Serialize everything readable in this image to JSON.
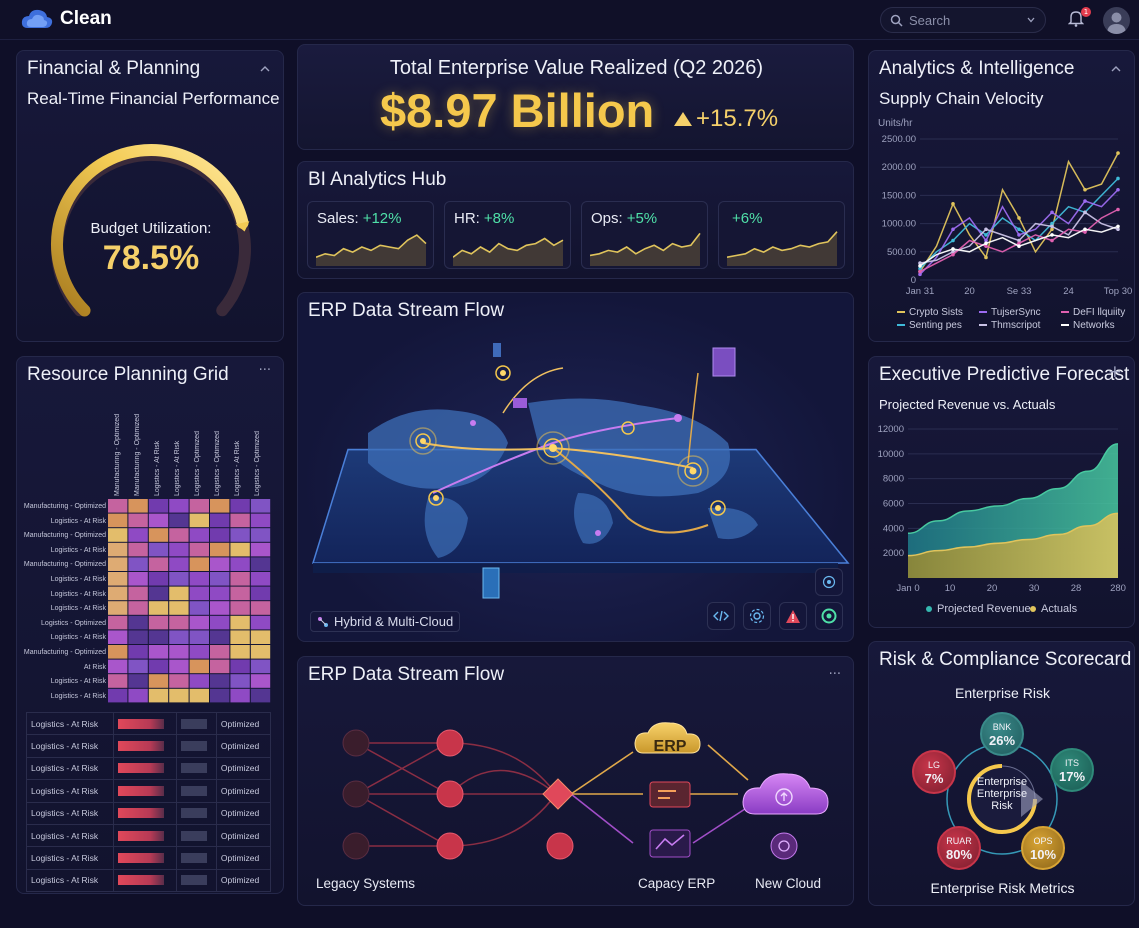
{
  "app": {
    "name": "Clean"
  },
  "search": {
    "placeholder": "Search"
  },
  "notifications": {
    "count": "1"
  },
  "financial": {
    "title": "Financial & Planning",
    "subtitle": "Real-Time Financial Performance",
    "gauge_label": "Budget Utilization:",
    "gauge_value": "78.5%",
    "gauge_fraction": 0.785
  },
  "resource": {
    "title": "Resource Planning Grid",
    "col_labels": [
      "Manufacturing - Optimized",
      "Manufacturing - Optimized",
      "Logistics - At Risk",
      "Logistics - At Risk",
      "Logistics - Optimized",
      "Logistics - Optimized",
      "Logistics - At Risk",
      "Logistics - Optimized"
    ],
    "row_labels": [
      "Manufacturing - Optimized",
      "Logistics - At Risk",
      "Manufacturing - Optimized",
      "Logistics - At Risk",
      "Manufacturing - Optimized",
      "Logistics - At Risk",
      "Logistics - At Risk",
      "Logistics - At Risk",
      "Logistics - Optimized",
      "Logistics - At Risk",
      "Manufacturing - Optimized",
      "At Risk",
      "Logistics - At Risk",
      "Logistics - At Risk"
    ],
    "table_rows": [
      {
        "name": "Logistics - At Risk",
        "status": "Optimized"
      },
      {
        "name": "Logistics - At Risk",
        "status": "Optimized"
      },
      {
        "name": "Logistics - At Risk",
        "status": "Optimized"
      },
      {
        "name": "Logistics - At Risk",
        "status": "Optimized"
      },
      {
        "name": "Logistics - At Risk",
        "status": "Optimized"
      },
      {
        "name": "Logistics - At Risk",
        "status": "Optimized"
      },
      {
        "name": "Logistics - At Risk",
        "status": "Optimized"
      },
      {
        "name": "Logistics - At Risk",
        "status": "Optimized"
      }
    ]
  },
  "hero": {
    "title": "Total Enterprise Value Realized (Q2 2026)",
    "value": "$8.97 Billion",
    "change": "+15.7%"
  },
  "bi": {
    "title": "BI Analytics Hub",
    "cards": [
      {
        "label": "Sales:",
        "value": "+12%"
      },
      {
        "label": "HR:",
        "value": "+8%"
      },
      {
        "label": "Ops:",
        "value": "+5%"
      },
      {
        "label": "",
        "value": "+6%"
      }
    ]
  },
  "erp_map": {
    "title": "ERP Data Stream Flow",
    "legend": "Hybrid & Multi-Cloud"
  },
  "erp_flow": {
    "title": "ERP Data Stream Flow",
    "erp_label": "ERP",
    "nodes": {
      "legacy": "Legacy Systems",
      "capacity": "Capacy ERP",
      "cloud": "New Cloud"
    }
  },
  "analytics": {
    "title": "Analytics & Intelligence",
    "chart_title": "Supply Chain Velocity",
    "chart_data": {
      "type": "line",
      "ylabel": "Units/hr",
      "y_ticks": [
        "0",
        "500.00",
        "1000.00",
        "1500.00",
        "2000.00",
        "2500.00"
      ],
      "x_ticks": [
        "Jan 31",
        "20",
        "Se 33",
        "24",
        "Top 30"
      ],
      "ylim": [
        0,
        2500
      ],
      "x": [
        0,
        1,
        2,
        3,
        4,
        5,
        6,
        7,
        8,
        9,
        10,
        11,
        12
      ],
      "series": [
        {
          "name": "Crypto Sists",
          "color": "#e0c45c",
          "values": [
            150,
            600,
            1350,
            800,
            400,
            1600,
            1100,
            500,
            900,
            2100,
            1600,
            1700,
            2250
          ]
        },
        {
          "name": "Senting pes",
          "color": "#3fbad8",
          "values": [
            200,
            500,
            700,
            1000,
            800,
            1100,
            900,
            700,
            1000,
            1300,
            1200,
            1500,
            1800
          ]
        },
        {
          "name": "TujserSync",
          "color": "#9c6bf0",
          "values": [
            100,
            400,
            900,
            1100,
            700,
            1300,
            800,
            900,
            1200,
            1000,
            1400,
            1300,
            1600
          ]
        },
        {
          "name": "Thmscripot",
          "color": "#c9c2e6",
          "values": [
            300,
            350,
            500,
            600,
            900,
            800,
            700,
            1000,
            950,
            800,
            1200,
            1000,
            900
          ]
        },
        {
          "name": "DeFI llquiity",
          "color": "#e060b0",
          "values": [
            150,
            300,
            450,
            700,
            600,
            500,
            650,
            800,
            700,
            900,
            850,
            1100,
            1250
          ]
        },
        {
          "name": "Networks",
          "color": "#ffffff",
          "values": [
            250,
            450,
            550,
            500,
            650,
            750,
            600,
            700,
            800,
            750,
            900,
            850,
            950
          ]
        }
      ]
    }
  },
  "forecast": {
    "title": "Executive Predictive Forecast",
    "subtitle": "Projected Revenue vs. Actuals",
    "chart_data": {
      "type": "area",
      "y_ticks": [
        "2000",
        "4000",
        "6000",
        "8000",
        "10000",
        "12000"
      ],
      "x_ticks": [
        "Jan 0",
        "10",
        "20",
        "30",
        "28",
        "280"
      ],
      "ylim": [
        0,
        12000
      ],
      "series": [
        {
          "name": "Projected Revenue",
          "color": "#35b8b0",
          "values": [
            3600,
            4600,
            5400,
            5800,
            6400,
            7200,
            8600,
            10800
          ]
        },
        {
          "name": "Actuals",
          "color": "#e0c45c",
          "values": [
            1800,
            2200,
            2500,
            2800,
            3100,
            3500,
            4200,
            5200
          ]
        }
      ]
    }
  },
  "risk": {
    "title": "Risk & Compliance Scorecard",
    "header": "Enterprise Risk",
    "center": [
      "Enterprise",
      "Enterprise",
      "Risk"
    ],
    "footer": "Enterprise Risk Metrics",
    "nodes": [
      {
        "label": "BNK",
        "value": "26%"
      },
      {
        "label": "ITS",
        "value": "17%"
      },
      {
        "label": "OPS",
        "value": "10%"
      },
      {
        "label": "RUAR",
        "value": "80%"
      },
      {
        "label": "LG",
        "value": "7%"
      }
    ]
  }
}
